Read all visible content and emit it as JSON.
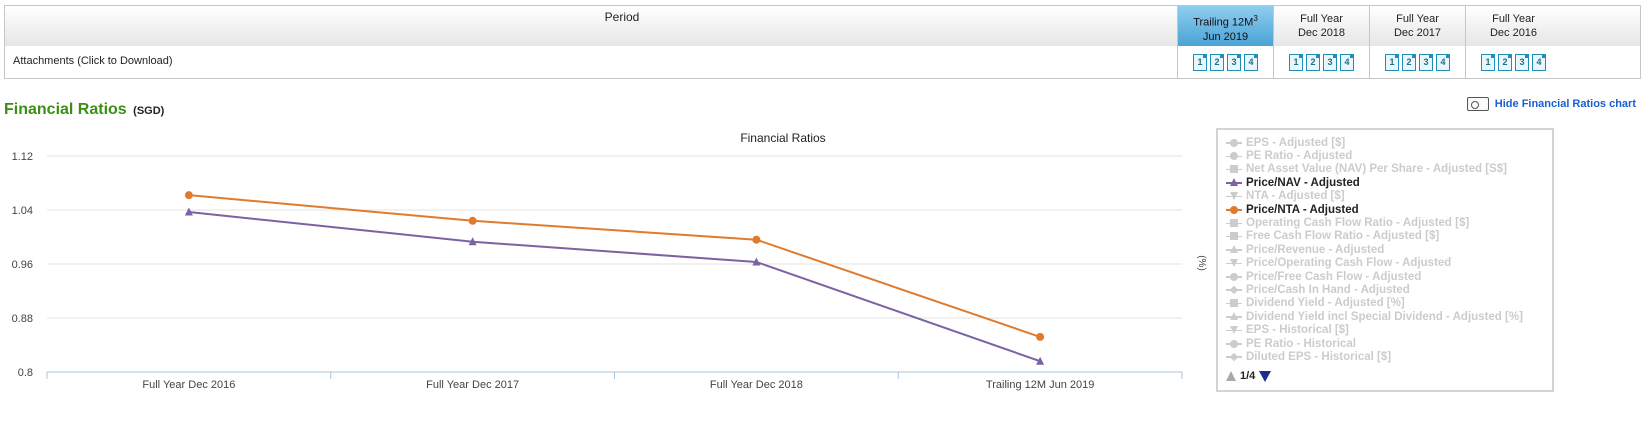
{
  "table": {
    "period_label": "Period",
    "attachments_label": "Attachments (Click to Download)",
    "columns": [
      {
        "line1": "Trailing 12M",
        "sup": "3",
        "line2": "Jun 2019",
        "active": true,
        "icons": [
          "1",
          "2",
          "3",
          "4"
        ]
      },
      {
        "line1": "Full Year",
        "sup": "",
        "line2": "Dec 2018",
        "active": false,
        "icons": [
          "1",
          "2",
          "3",
          "4"
        ]
      },
      {
        "line1": "Full Year",
        "sup": "",
        "line2": "Dec 2017",
        "active": false,
        "icons": [
          "1",
          "2",
          "3",
          "4"
        ]
      },
      {
        "line1": "Full Year",
        "sup": "",
        "line2": "Dec 2016",
        "active": false,
        "icons": [
          "1",
          "2",
          "3",
          "4"
        ]
      }
    ]
  },
  "section": {
    "title": "Financial Ratios",
    "currency": "(SGD)",
    "hide_link": "Hide Financial Ratios chart",
    "hide_icon": "chart-toggle-icon"
  },
  "chart_data": {
    "type": "line",
    "title": "Financial Ratios",
    "ylabel_right": "(%)",
    "categories": [
      "Full Year Dec 2016",
      "Full Year Dec 2017",
      "Full Year Dec 2018",
      "Trailing 12M Jun 2019"
    ],
    "yticks": [
      "1.12",
      "1.04",
      "0.96",
      "0.88",
      "0.8"
    ],
    "ylim": [
      0.8,
      1.12
    ],
    "grid": true,
    "series": [
      {
        "name": "Price/NAV - Adjusted",
        "color": "#7b62a3",
        "marker": "triangle",
        "values": [
          1.037,
          0.993,
          0.963,
          0.816
        ]
      },
      {
        "name": "Price/NTA - Adjusted",
        "color": "#e07b2e",
        "marker": "circle",
        "values": [
          1.062,
          1.024,
          0.996,
          0.852
        ]
      }
    ]
  },
  "legend": {
    "items": [
      {
        "name": "EPS - Adjusted [$]",
        "on": false,
        "marker": "circle",
        "color": "#ccc"
      },
      {
        "name": "PE Ratio - Adjusted",
        "on": false,
        "marker": "circle",
        "color": "#ccc"
      },
      {
        "name": "Net Asset Value (NAV) Per Share - Adjusted [S$]",
        "on": false,
        "marker": "square",
        "color": "#ccc"
      },
      {
        "name": "Price/NAV - Adjusted",
        "on": true,
        "marker": "tri",
        "color": "#7b62a3"
      },
      {
        "name": "NTA - Adjusted [$]",
        "on": false,
        "marker": "tridown",
        "color": "#ccc"
      },
      {
        "name": "Price/NTA - Adjusted",
        "on": true,
        "marker": "circle",
        "color": "#e07b2e"
      },
      {
        "name": "Operating Cash Flow Ratio - Adjusted [$]",
        "on": false,
        "marker": "square",
        "color": "#ccc"
      },
      {
        "name": "Free Cash Flow Ratio - Adjusted [$]",
        "on": false,
        "marker": "square",
        "color": "#ccc"
      },
      {
        "name": "Price/Revenue - Adjusted",
        "on": false,
        "marker": "tri",
        "color": "#ccc"
      },
      {
        "name": "Price/Operating Cash Flow - Adjusted",
        "on": false,
        "marker": "tridown",
        "color": "#ccc"
      },
      {
        "name": "Price/Free Cash Flow - Adjusted",
        "on": false,
        "marker": "circle",
        "color": "#ccc"
      },
      {
        "name": "Price/Cash In Hand - Adjusted",
        "on": false,
        "marker": "diamond",
        "color": "#ccc"
      },
      {
        "name": "Dividend Yield - Adjusted [%]",
        "on": false,
        "marker": "square",
        "color": "#ccc"
      },
      {
        "name": "Dividend Yield incl Special Dividend - Adjusted [%]",
        "on": false,
        "marker": "tri",
        "color": "#ccc"
      },
      {
        "name": "EPS - Historical [$]",
        "on": false,
        "marker": "tridown",
        "color": "#ccc"
      },
      {
        "name": "PE Ratio - Historical",
        "on": false,
        "marker": "circle",
        "color": "#ccc"
      },
      {
        "name": "Diluted EPS - Historical [$]",
        "on": false,
        "marker": "diamond",
        "color": "#ccc"
      }
    ],
    "pager": "1/4"
  }
}
